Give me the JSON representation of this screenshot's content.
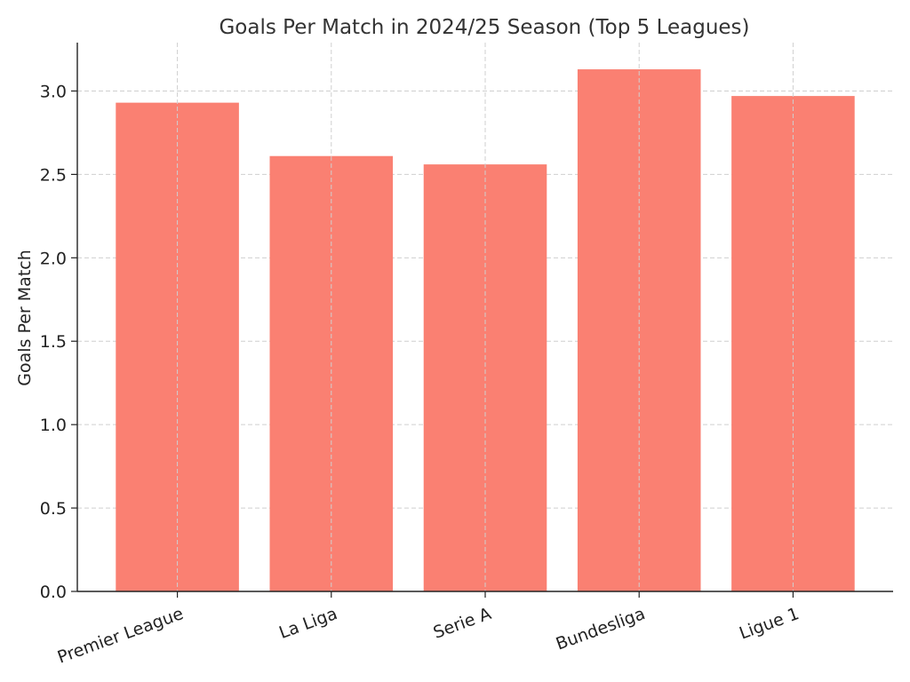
{
  "chart_data": {
    "type": "bar",
    "title": "Goals Per Match in 2024/25 Season (Top 5 Leagues)",
    "xlabel": "",
    "ylabel": "Goals Per Match",
    "categories": [
      "Premier League",
      "La Liga",
      "Serie A",
      "Bundesliga",
      "Ligue 1"
    ],
    "values": [
      2.93,
      2.61,
      2.56,
      3.13,
      2.97
    ],
    "ylim": [
      0,
      3.29
    ],
    "yticks": [
      "0.0",
      "0.5",
      "1.0",
      "1.5",
      "2.0",
      "2.5",
      "3.0"
    ],
    "grid": true,
    "bar_color": "#fa8072",
    "x_tick_rotation_deg": 20
  }
}
